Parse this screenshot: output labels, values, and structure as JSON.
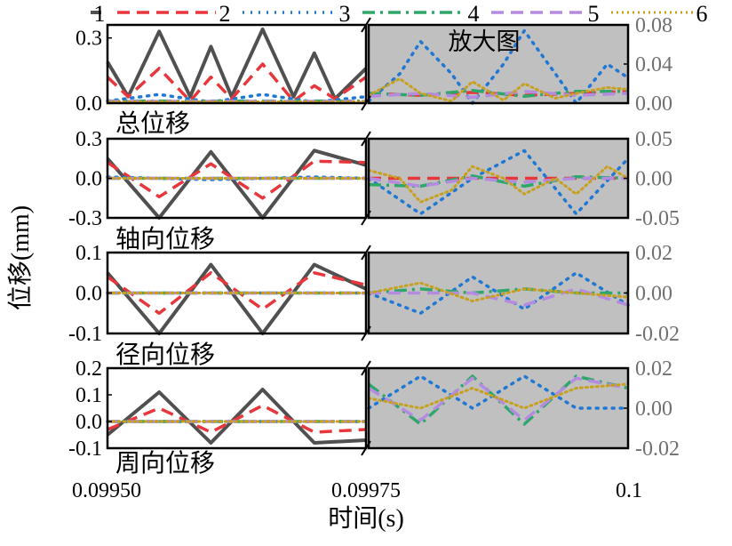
{
  "figure": {
    "xlabel": "时间(s)",
    "ylabel": "位移(mm)",
    "zoom_label": "放大图",
    "x_ticks": [
      "0.09950",
      "0.09975",
      "0.1"
    ]
  },
  "legend": [
    {
      "name": "1",
      "color": "#505050",
      "dash": "solid"
    },
    {
      "name": "2",
      "color": "#e8373c",
      "dash": "dash"
    },
    {
      "name": "3",
      "color": "#1f78d4",
      "dash": "dot"
    },
    {
      "name": "4",
      "color": "#2ea86a",
      "dash": "dashdot"
    },
    {
      "name": "5",
      "color": "#b58be0",
      "dash": "dash"
    },
    {
      "name": "6",
      "color": "#c8a020",
      "dash": "shortdot"
    }
  ],
  "colors": {
    "axis_left": "#000000",
    "axis_right": "#707070",
    "zoom_bg": "#c0c0c0",
    "frame": "#000000"
  },
  "chart_data": [
    {
      "type": "line",
      "title": "总位移",
      "xlim": [
        0.0995,
        0.1
      ],
      "left": {
        "ylim": [
          0,
          0.36
        ],
        "yticks": [
          0.0,
          0.3
        ],
        "tick_labels": [
          "0.0",
          "0.3"
        ]
      },
      "right": {
        "ylim": [
          0,
          0.08
        ],
        "yticks": [
          0.0,
          0.04,
          0.08
        ],
        "tick_labels": [
          "0.00",
          "0.04",
          "0.08"
        ]
      },
      "series": [
        {
          "name": "1",
          "left_x": [
            0.0995,
            0.09952,
            0.09955,
            0.09958,
            0.0996,
            0.09962,
            0.09965,
            0.09968,
            0.0997,
            0.09972,
            0.09975
          ],
          "left_y": [
            0.19,
            0.03,
            0.33,
            0.03,
            0.26,
            0.03,
            0.34,
            0.03,
            0.23,
            0.02,
            0.16
          ]
        },
        {
          "name": "2",
          "left_x": [
            0.0995,
            0.09952,
            0.09955,
            0.09958,
            0.0996,
            0.09962,
            0.09965,
            0.09968,
            0.0997,
            0.09972,
            0.09975
          ],
          "left_y": [
            0.12,
            0.03,
            0.16,
            0.01,
            0.12,
            0.02,
            0.18,
            0.01,
            0.08,
            0.02,
            0.12
          ],
          "right_x": [
            0.09975,
            0.0998,
            0.09985,
            0.0999,
            0.09995,
            0.1
          ],
          "right_y": [
            0.01,
            0.008,
            0.011,
            0.008,
            0.01,
            0.012
          ]
        },
        {
          "name": "3",
          "left_x": [
            0.0995,
            0.09955,
            0.0996,
            0.09965,
            0.0997,
            0.09975
          ],
          "left_y": [
            0.01,
            0.04,
            0.005,
            0.04,
            0.005,
            0.03
          ],
          "right_x": [
            0.09975,
            0.09978,
            0.0998,
            0.09983,
            0.09985,
            0.09988,
            0.0999,
            0.09993,
            0.09995,
            0.09998,
            0.1
          ],
          "right_y": [
            0.002,
            0.03,
            0.063,
            0.03,
            0.0,
            0.04,
            0.074,
            0.03,
            0.0,
            0.04,
            0.026
          ]
        },
        {
          "name": "4",
          "left_x": [
            0.0995,
            0.09975
          ],
          "left_y": [
            0.01,
            0.01
          ],
          "right_x": [
            0.09975,
            0.0998,
            0.09985,
            0.0999,
            0.09995,
            0.1
          ],
          "right_y": [
            0.01,
            0.008,
            0.013,
            0.007,
            0.012,
            0.012
          ]
        },
        {
          "name": "5",
          "left_x": [
            0.0995,
            0.09975
          ],
          "left_y": [
            0.008,
            0.008
          ],
          "right_x": [
            0.09975,
            0.0998,
            0.09985,
            0.0999,
            0.09995,
            0.1
          ],
          "right_y": [
            0.007,
            0.01,
            0.006,
            0.012,
            0.008,
            0.01
          ]
        },
        {
          "name": "6",
          "left_x": [
            0.0995,
            0.09975
          ],
          "left_y": [
            0.006,
            0.006
          ],
          "right_x": [
            0.09975,
            0.09978,
            0.0998,
            0.09983,
            0.09985,
            0.09988,
            0.0999,
            0.09993,
            0.09995,
            0.09998,
            0.1
          ],
          "right_y": [
            0.008,
            0.025,
            0.01,
            0.002,
            0.022,
            0.003,
            0.02,
            0.005,
            0.01,
            0.016,
            0.014
          ]
        }
      ]
    },
    {
      "type": "line",
      "title": "轴向位移",
      "xlim": [
        0.0995,
        0.1
      ],
      "left": {
        "ylim": [
          -0.3,
          0.3
        ],
        "yticks": [
          -0.3,
          0.0,
          0.3
        ],
        "tick_labels": [
          "-0.3",
          "0.0",
          "0.3"
        ]
      },
      "right": {
        "ylim": [
          -0.05,
          0.05
        ],
        "yticks": [
          -0.05,
          0.0,
          0.05
        ],
        "tick_labels": [
          "-0.05",
          "0.00",
          "0.05"
        ]
      },
      "series": [
        {
          "name": "1",
          "left_x": [
            0.0995,
            0.09955,
            0.0996,
            0.09965,
            0.0997,
            0.09975
          ],
          "left_y": [
            0.15,
            -0.3,
            0.2,
            -0.3,
            0.21,
            0.1
          ]
        },
        {
          "name": "2",
          "left_x": [
            0.0995,
            0.09955,
            0.0996,
            0.09965,
            0.0997,
            0.09975
          ],
          "left_y": [
            0.12,
            -0.14,
            0.11,
            -0.15,
            0.13,
            0.12
          ],
          "right_x": [
            0.09975,
            0.1
          ],
          "right_y": [
            0.0,
            0.0
          ]
        },
        {
          "name": "3",
          "left_x": [
            0.0995,
            0.0996,
            0.0997,
            0.09975
          ],
          "left_y": [
            0.01,
            -0.01,
            0.01,
            0.0
          ],
          "right_x": [
            0.09975,
            0.0998,
            0.09985,
            0.0999,
            0.09995,
            0.1
          ],
          "right_y": [
            0.0,
            -0.045,
            0.0,
            0.035,
            -0.045,
            0.025
          ]
        },
        {
          "name": "4",
          "left_x": [
            0.0995,
            0.09975
          ],
          "left_y": [
            0.0,
            0.0
          ],
          "right_x": [
            0.09975,
            0.0998,
            0.09985,
            0.0999,
            0.09995,
            0.1
          ],
          "right_y": [
            -0.008,
            -0.01,
            0.003,
            -0.01,
            0.002,
            0.0
          ]
        },
        {
          "name": "5",
          "left_x": [
            0.0995,
            0.09975
          ],
          "left_y": [
            0.0,
            0.0
          ],
          "right_x": [
            0.09975,
            0.0998,
            0.09985,
            0.0999,
            0.09995,
            0.1
          ],
          "right_y": [
            0.0,
            -0.01,
            0.0,
            -0.005,
            0.0,
            0.0
          ]
        },
        {
          "name": "6",
          "left_x": [
            0.0995,
            0.09975
          ],
          "left_y": [
            0.0,
            0.0
          ],
          "right_x": [
            0.09975,
            0.09978,
            0.0998,
            0.09983,
            0.09985,
            0.09988,
            0.0999,
            0.09993,
            0.09995,
            0.09998,
            0.1
          ],
          "right_y": [
            0.01,
            0.0,
            -0.03,
            -0.015,
            0.015,
            0.0,
            -0.02,
            0.0,
            -0.02,
            0.015,
            0.0
          ]
        }
      ]
    },
    {
      "type": "line",
      "title": "径向位移",
      "xlim": [
        0.0995,
        0.1
      ],
      "left": {
        "ylim": [
          -0.1,
          0.1
        ],
        "yticks": [
          -0.1,
          0.0,
          0.1
        ],
        "tick_labels": [
          "-0.1",
          "0.0",
          "0.1"
        ]
      },
      "right": {
        "ylim": [
          -0.02,
          0.02
        ],
        "yticks": [
          -0.02,
          0.0,
          0.02
        ],
        "tick_labels": [
          "-0.02",
          "0.00",
          "0.02"
        ]
      },
      "series": [
        {
          "name": "1",
          "left_x": [
            0.0995,
            0.09955,
            0.0996,
            0.09965,
            0.0997,
            0.09975
          ],
          "left_y": [
            0.05,
            -0.1,
            0.07,
            -0.1,
            0.07,
            0.01
          ]
        },
        {
          "name": "2",
          "left_x": [
            0.0995,
            0.09955,
            0.0996,
            0.09965,
            0.0997,
            0.09975
          ],
          "left_y": [
            0.04,
            -0.05,
            0.05,
            -0.04,
            0.05,
            0.02
          ]
        },
        {
          "name": "3",
          "left_x": [
            0.0995,
            0.09975
          ],
          "left_y": [
            0.0,
            0.0
          ],
          "right_x": [
            0.09975,
            0.0998,
            0.09985,
            0.0999,
            0.09995,
            0.1
          ],
          "right_y": [
            0.0,
            -0.01,
            0.008,
            -0.008,
            0.01,
            -0.006
          ]
        },
        {
          "name": "4",
          "left_x": [
            0.0995,
            0.09975
          ],
          "left_y": [
            0.0,
            0.0
          ],
          "right_x": [
            0.09975,
            0.0998,
            0.09985,
            0.0999,
            0.09995,
            0.1
          ],
          "right_y": [
            0.0,
            0.002,
            0.0,
            0.002,
            0.0,
            0.0
          ]
        },
        {
          "name": "5",
          "left_x": [
            0.0995,
            0.09975
          ],
          "left_y": [
            0.0,
            0.0
          ],
          "right_x": [
            0.09975,
            0.0998,
            0.09985,
            0.0999,
            0.09995,
            0.1
          ],
          "right_y": [
            0.0,
            0.0,
            0.0,
            -0.006,
            0.002,
            -0.006
          ]
        },
        {
          "name": "6",
          "left_x": [
            0.0995,
            0.09975
          ],
          "left_y": [
            0.0,
            0.0
          ],
          "right_x": [
            0.09975,
            0.0998,
            0.09985,
            0.0999,
            0.09995,
            0.1
          ],
          "right_y": [
            0.0,
            0.005,
            -0.004,
            0.002,
            0.0,
            -0.002
          ]
        }
      ]
    },
    {
      "type": "line",
      "title": "周向位移",
      "xlim": [
        0.0995,
        0.1
      ],
      "left": {
        "ylim": [
          -0.1,
          0.2
        ],
        "yticks": [
          -0.1,
          0.0,
          0.1,
          0.2
        ],
        "tick_labels": [
          "-0.1",
          "0.0",
          "0.1",
          "0.2"
        ]
      },
      "right": {
        "ylim": [
          -0.02,
          0.02
        ],
        "yticks": [
          -0.02,
          0.0,
          0.02
        ],
        "tick_labels": [
          "-0.02",
          "0.00",
          "0.02"
        ]
      },
      "series": [
        {
          "name": "1",
          "left_x": [
            0.0995,
            0.09955,
            0.0996,
            0.09965,
            0.0997,
            0.09975
          ],
          "left_y": [
            -0.05,
            0.11,
            -0.08,
            0.12,
            -0.08,
            -0.07
          ]
        },
        {
          "name": "2",
          "left_x": [
            0.0995,
            0.09955,
            0.0996,
            0.09965,
            0.0997,
            0.09975
          ],
          "left_y": [
            -0.03,
            0.05,
            -0.04,
            0.06,
            -0.04,
            -0.03
          ]
        },
        {
          "name": "3",
          "left_x": [
            0.0995,
            0.09975
          ],
          "left_y": [
            0.0,
            0.0
          ],
          "right_x": [
            0.09975,
            0.0998,
            0.09985,
            0.0999,
            0.09995,
            0.1
          ],
          "right_y": [
            0.0,
            0.016,
            0.0,
            0.016,
            0.0,
            0.0
          ]
        },
        {
          "name": "4",
          "left_x": [
            0.0995,
            0.09975
          ],
          "left_y": [
            0.0,
            0.0
          ],
          "right_x": [
            0.09975,
            0.0998,
            0.09985,
            0.0999,
            0.09995,
            0.1
          ],
          "right_y": [
            0.012,
            -0.008,
            0.016,
            -0.008,
            0.016,
            0.01
          ]
        },
        {
          "name": "5",
          "left_x": [
            0.0995,
            0.09975
          ],
          "left_y": [
            0.0,
            0.0
          ],
          "right_x": [
            0.09975,
            0.0998,
            0.09985,
            0.0999,
            0.09995,
            0.1
          ],
          "right_y": [
            0.01,
            -0.006,
            0.015,
            -0.006,
            0.015,
            0.01
          ]
        },
        {
          "name": "6",
          "left_x": [
            0.0995,
            0.09975
          ],
          "left_y": [
            0.0,
            0.0
          ],
          "right_x": [
            0.09975,
            0.0998,
            0.09985,
            0.0999,
            0.09995,
            0.1
          ],
          "right_y": [
            0.005,
            0.0,
            0.01,
            0.0,
            0.01,
            0.012
          ]
        }
      ]
    }
  ]
}
